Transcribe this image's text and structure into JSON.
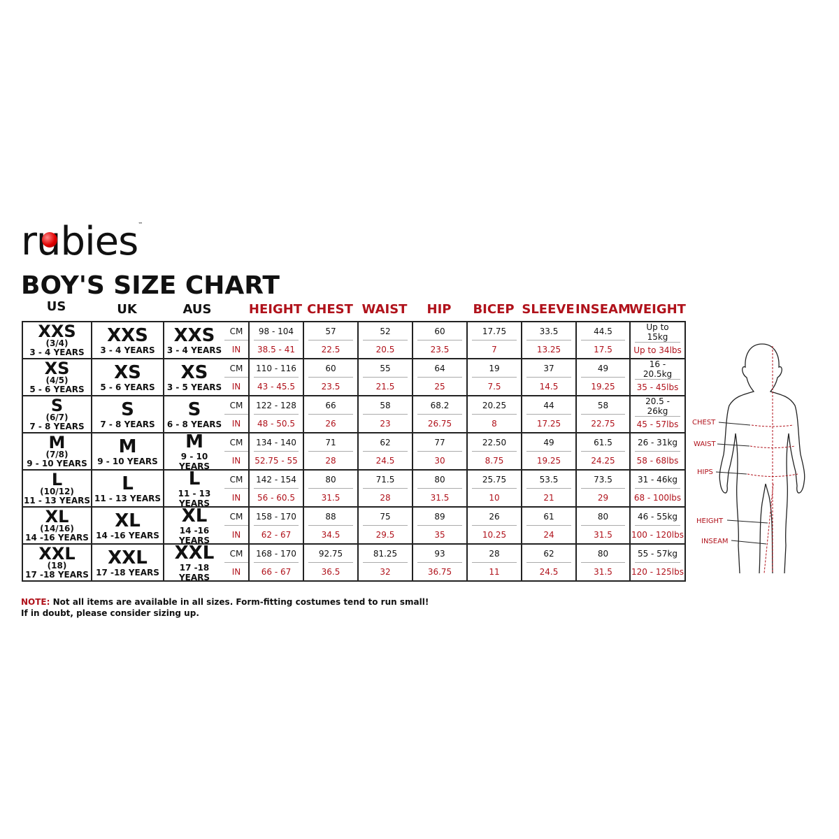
{
  "brand": {
    "logo_text": "rubies"
  },
  "title": "BOY'S SIZE CHART",
  "headers": {
    "us": "US",
    "uk": "UK",
    "aus": "AUS",
    "measures": [
      "HEIGHT",
      "CHEST",
      "WAIST",
      "HIP",
      "BICEP",
      "SLEEVE",
      "INSEAM",
      "WEIGHT"
    ]
  },
  "units": {
    "cm": "CM",
    "in": "IN"
  },
  "rows": [
    {
      "us": "XXS",
      "us_sub": "(3/4)",
      "us_age": "3 - 4 YEARS",
      "uk": "XXS",
      "uk_age": "3 - 4 YEARS",
      "aus": "XXS",
      "aus_age": "3 - 4 YEARS",
      "cm": [
        "98 - 104",
        "57",
        "52",
        "60",
        "17.75",
        "33.5",
        "44.5",
        "Up to 15kg"
      ],
      "in": [
        "38.5 - 41",
        "22.5",
        "20.5",
        "23.5",
        "7",
        "13.25",
        "17.5",
        "Up to 34lbs"
      ]
    },
    {
      "us": "XS",
      "us_sub": "(4/5)",
      "us_age": "5 - 6 YEARS",
      "uk": "XS",
      "uk_age": "5 - 6 YEARS",
      "aus": "XS",
      "aus_age": "3 - 5 YEARS",
      "cm": [
        "110 - 116",
        "60",
        "55",
        "64",
        "19",
        "37",
        "49",
        "16 - 20.5kg"
      ],
      "in": [
        "43 - 45.5",
        "23.5",
        "21.5",
        "25",
        "7.5",
        "14.5",
        "19.25",
        "35 - 45lbs"
      ]
    },
    {
      "us": "S",
      "us_sub": "(6/7)",
      "us_age": "7 - 8 YEARS",
      "uk": "S",
      "uk_age": "7 - 8 YEARS",
      "aus": "S",
      "aus_age": "6 - 8 YEARS",
      "cm": [
        "122 - 128",
        "66",
        "58",
        "68.2",
        "20.25",
        "44",
        "58",
        "20.5 - 26kg"
      ],
      "in": [
        "48 - 50.5",
        "26",
        "23",
        "26.75",
        "8",
        "17.25",
        "22.75",
        "45 - 57lbs"
      ]
    },
    {
      "us": "M",
      "us_sub": "(7/8)",
      "us_age": "9 - 10 YEARS",
      "uk": "M",
      "uk_age": "9 - 10 YEARS",
      "aus": "M",
      "aus_age": "9 - 10 YEARS",
      "cm": [
        "134 - 140",
        "71",
        "62",
        "77",
        "22.50",
        "49",
        "61.5",
        "26 - 31kg"
      ],
      "in": [
        "52.75 - 55",
        "28",
        "24.5",
        "30",
        "8.75",
        "19.25",
        "24.25",
        "58 - 68lbs"
      ]
    },
    {
      "us": "L",
      "us_sub": "(10/12)",
      "us_age": "11 - 13 YEARS",
      "uk": "L",
      "uk_age": "11 - 13 YEARS",
      "aus": "L",
      "aus_age": "11 - 13 YEARS",
      "cm": [
        "142 - 154",
        "80",
        "71.5",
        "80",
        "25.75",
        "53.5",
        "73.5",
        "31 - 46kg"
      ],
      "in": [
        "56 - 60.5",
        "31.5",
        "28",
        "31.5",
        "10",
        "21",
        "29",
        "68 - 100lbs"
      ]
    },
    {
      "us": "XL",
      "us_sub": "(14/16)",
      "us_age": "14 -16 YEARS",
      "uk": "XL",
      "uk_age": "14 -16 YEARS",
      "aus": "XL",
      "aus_age": "14 -16 YEARS",
      "cm": [
        "158 - 170",
        "88",
        "75",
        "89",
        "26",
        "61",
        "80",
        "46 - 55kg"
      ],
      "in": [
        "62 - 67",
        "34.5",
        "29.5",
        "35",
        "10.25",
        "24",
        "31.5",
        "100 - 120lbs"
      ]
    },
    {
      "us": "XXL",
      "us_sub": "(18)",
      "us_age": "17 -18 YEARS",
      "uk": "XXL",
      "uk_age": "17 -18 YEARS",
      "aus": "XXL",
      "aus_age": "17 -18 YEARS",
      "cm": [
        "168 - 170",
        "92.75",
        "81.25",
        "93",
        "28",
        "62",
        "80",
        "55 - 57kg"
      ],
      "in": [
        "66 - 67",
        "36.5",
        "32",
        "36.75",
        "11",
        "24.5",
        "31.5",
        "120 - 125lbs"
      ]
    }
  ],
  "note": {
    "label": "NOTE:",
    "line1": "Not all items are available in all sizes. Form-fitting costumes tend to run small!",
    "line2": "If in doubt, please consider sizing up."
  },
  "figure_labels": [
    "CHEST",
    "WAIST",
    "HIPS",
    "HEIGHT",
    "INSEAM"
  ],
  "colors": {
    "accent": "#b0121b",
    "text": "#111111"
  }
}
